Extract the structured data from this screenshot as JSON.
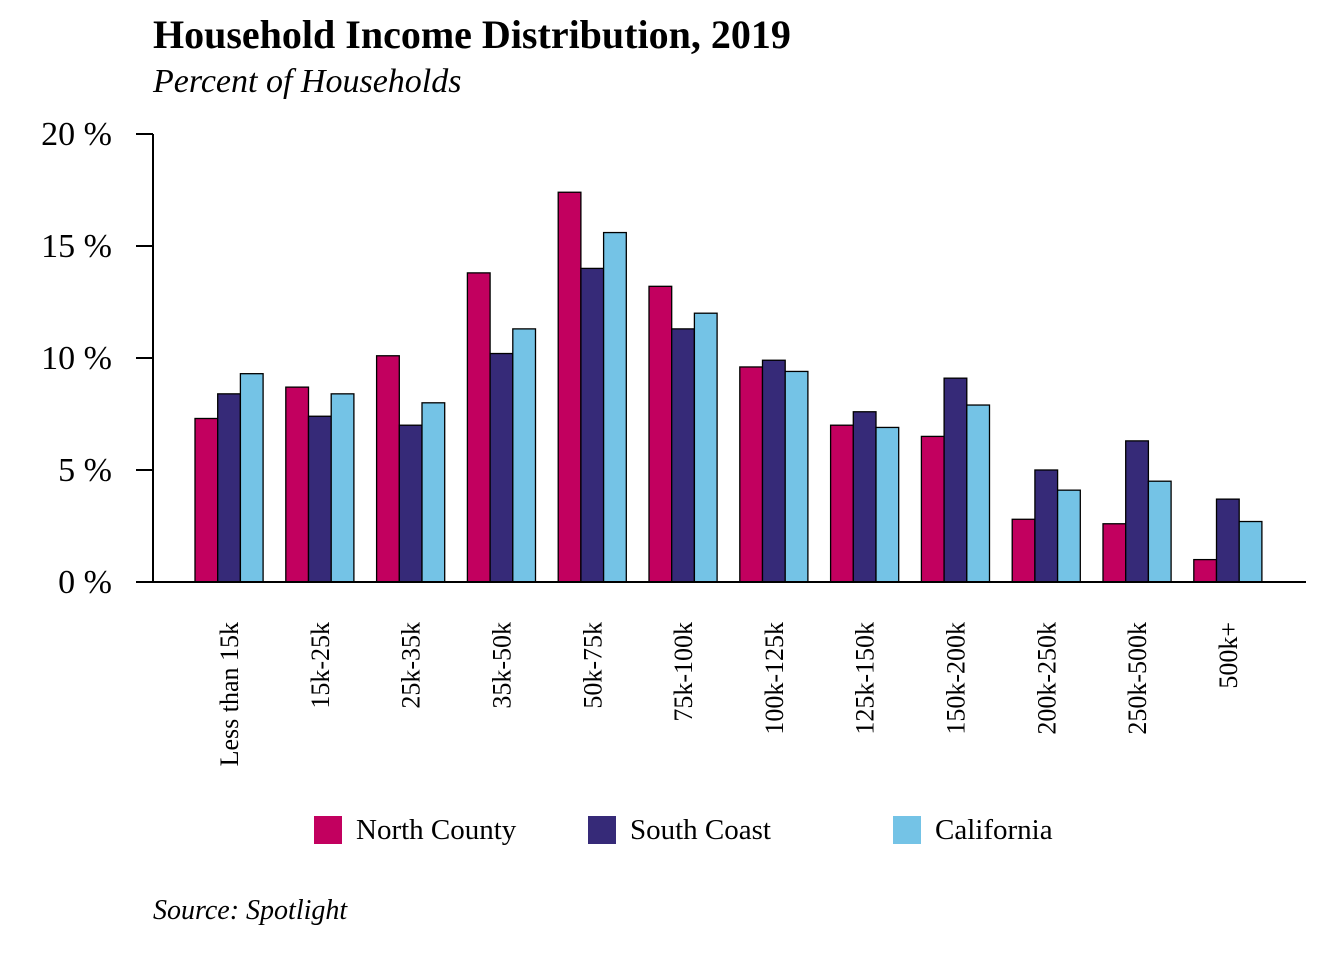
{
  "header": {
    "title": "Household Income Distribution, 2019",
    "subtitle": "Percent of Households"
  },
  "footer": {
    "source": "Source: Spotlight"
  },
  "chart_data": {
    "type": "bar",
    "title": "Household Income Distribution, 2019",
    "subtitle": "Percent of Households",
    "xlabel": "",
    "ylabel": "",
    "ylim": [
      0,
      20
    ],
    "y_ticks": [
      0,
      5,
      10,
      15,
      20
    ],
    "y_tick_labels": [
      "0 %",
      "5 %",
      "10 %",
      "15 %",
      "20 %"
    ],
    "grid": false,
    "legend_position": "bottom",
    "categories": [
      "Less than 15k",
      "15k-25k",
      "25k-35k",
      "35k-50k",
      "50k-75k",
      "75k-100k",
      "100k-125k",
      "125k-150k",
      "150k-200k",
      "200k-250k",
      "250k-500k",
      "500k+"
    ],
    "series": [
      {
        "name": "North County",
        "color": "#C2005F",
        "values": [
          7.3,
          8.7,
          10.1,
          13.8,
          17.4,
          13.2,
          9.6,
          7.0,
          6.5,
          2.8,
          2.6,
          1.0
        ]
      },
      {
        "name": "South Coast",
        "color": "#362A78",
        "values": [
          8.4,
          7.4,
          7.0,
          10.2,
          14.0,
          11.3,
          9.9,
          7.6,
          9.1,
          5.0,
          6.3,
          3.7
        ]
      },
      {
        "name": "California",
        "color": "#74C3E6",
        "values": [
          9.3,
          8.4,
          8.0,
          11.3,
          15.6,
          12.0,
          9.4,
          6.9,
          7.9,
          4.1,
          4.5,
          2.7
        ]
      }
    ]
  }
}
